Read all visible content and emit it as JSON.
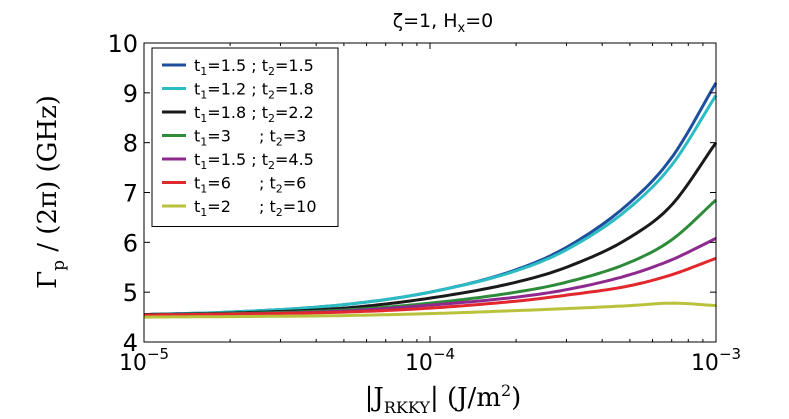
{
  "chart_data": {
    "type": "line",
    "title": {
      "main": "ζ=1, H",
      "sub": "x",
      "tail": "=0"
    },
    "ylabel": {
      "gamma": "Γ",
      "sub": "p",
      "rest": " / (2π) (GHz)"
    },
    "xlabel": {
      "pre": "|J",
      "sub": "RKKY",
      "mid": "| (J/m",
      "sup": "2",
      "post": ")"
    },
    "x_scale": "log",
    "xlim": [
      1e-05,
      0.001
    ],
    "ylim": [
      4,
      10
    ],
    "x_ticks": [
      {
        "value": 1e-05,
        "base": "10",
        "exp": "−5"
      },
      {
        "value": 0.0001,
        "base": "10",
        "exp": "−4"
      },
      {
        "value": 0.001,
        "base": "10",
        "exp": "−3"
      }
    ],
    "y_ticks": [
      4,
      5,
      6,
      7,
      8,
      9,
      10
    ],
    "grid": false,
    "legend_position": "top-left",
    "x_samples": [
      1e-05,
      2e-05,
      5e-05,
      0.0001,
      0.0002,
      0.0003,
      0.0005,
      0.0007,
      0.001
    ],
    "series": [
      {
        "t1": "1.5",
        "t2": "1.5",
        "gap": false,
        "color": "#1f4e9e",
        "values": [
          4.55,
          4.6,
          4.75,
          5.0,
          5.45,
          5.9,
          6.8,
          7.7,
          9.2
        ]
      },
      {
        "t1": "1.2",
        "t2": "1.8",
        "gap": false,
        "color": "#2bbcc4",
        "values": [
          4.55,
          4.6,
          4.75,
          5.0,
          5.43,
          5.85,
          6.7,
          7.55,
          8.95
        ]
      },
      {
        "t1": "1.8",
        "t2": "2.2",
        "gap": false,
        "color": "#1a1a1a",
        "values": [
          4.55,
          4.58,
          4.68,
          4.88,
          5.2,
          5.5,
          6.1,
          6.75,
          8.0
        ]
      },
      {
        "t1": "3",
        "t2": "3",
        "gap": true,
        "color": "#2e8b3a",
        "values": [
          4.54,
          4.57,
          4.64,
          4.78,
          5.0,
          5.2,
          5.6,
          6.05,
          6.85
        ]
      },
      {
        "t1": "1.5",
        "t2": "4.5",
        "gap": false,
        "color": "#8e2a8e",
        "values": [
          4.54,
          4.56,
          4.62,
          4.74,
          4.9,
          5.05,
          5.35,
          5.65,
          6.08
        ]
      },
      {
        "t1": "6",
        "t2": "6",
        "gap": true,
        "color": "#e0282e",
        "values": [
          4.54,
          4.56,
          4.6,
          4.68,
          4.82,
          4.94,
          5.13,
          5.35,
          5.68
        ]
      },
      {
        "t1": "2",
        "t2": "10",
        "gap": true,
        "color": "#b9c23a",
        "values": [
          4.5,
          4.51,
          4.53,
          4.57,
          4.63,
          4.67,
          4.73,
          4.78,
          4.73
        ]
      }
    ]
  }
}
